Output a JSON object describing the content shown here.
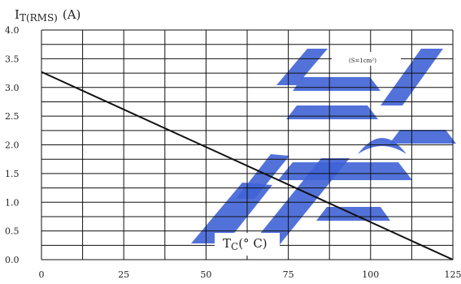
{
  "chart_data": {
    "type": "line",
    "ylabel_main": "I",
    "ylabel_sub": "T(RMS)",
    "ylabel_unit": "(A)",
    "xlabel_main": "T",
    "xlabel_sub": "C",
    "xlabel_unit": "(° C)",
    "annotation": "(S=1cm²)",
    "xlim": [
      0,
      125
    ],
    "ylim": [
      0,
      4.0
    ],
    "x_ticks": [
      "0",
      "25",
      "50",
      "75",
      "100",
      "125"
    ],
    "y_ticks": [
      "0.0",
      "0.5",
      "1.0",
      "1.5",
      "2.0",
      "2.5",
      "3.0",
      "3.5",
      "4.0"
    ],
    "grid": true,
    "series": [
      {
        "x": [
          0,
          125
        ],
        "y": [
          3.27,
          0.0
        ],
        "color": "#111111"
      }
    ],
    "watermark_color": "#3f63d6"
  }
}
